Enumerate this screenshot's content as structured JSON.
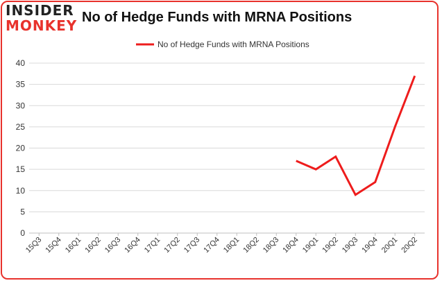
{
  "brand": {
    "line1": "INSIDER",
    "line2": "MONKEY"
  },
  "colors": {
    "series": "#ee1c1c",
    "brand_red": "#e8322c",
    "border": "#e8322c"
  },
  "chart_data": {
    "type": "line",
    "title": "No of Hedge Funds with MRNA Positions",
    "xlabel": "",
    "ylabel": "",
    "categories": [
      "15Q3",
      "15Q4",
      "16Q1",
      "16Q2",
      "16Q3",
      "16Q4",
      "17Q1",
      "17Q2",
      "17Q3",
      "17Q4",
      "18Q1",
      "18Q2",
      "18Q3",
      "18Q4",
      "19Q1",
      "19Q2",
      "19Q3",
      "19Q4",
      "20Q1",
      "20Q2"
    ],
    "series": [
      {
        "name": "No of Hedge Funds with MRNA Positions",
        "values": [
          null,
          null,
          null,
          null,
          null,
          null,
          null,
          null,
          null,
          null,
          null,
          null,
          null,
          17,
          15,
          18,
          9,
          12,
          25,
          37
        ]
      }
    ],
    "ylim": [
      0,
      40
    ],
    "yticks": [
      0,
      5,
      10,
      15,
      20,
      25,
      30,
      35,
      40
    ],
    "grid": "horizontal",
    "legend": "top-center"
  }
}
